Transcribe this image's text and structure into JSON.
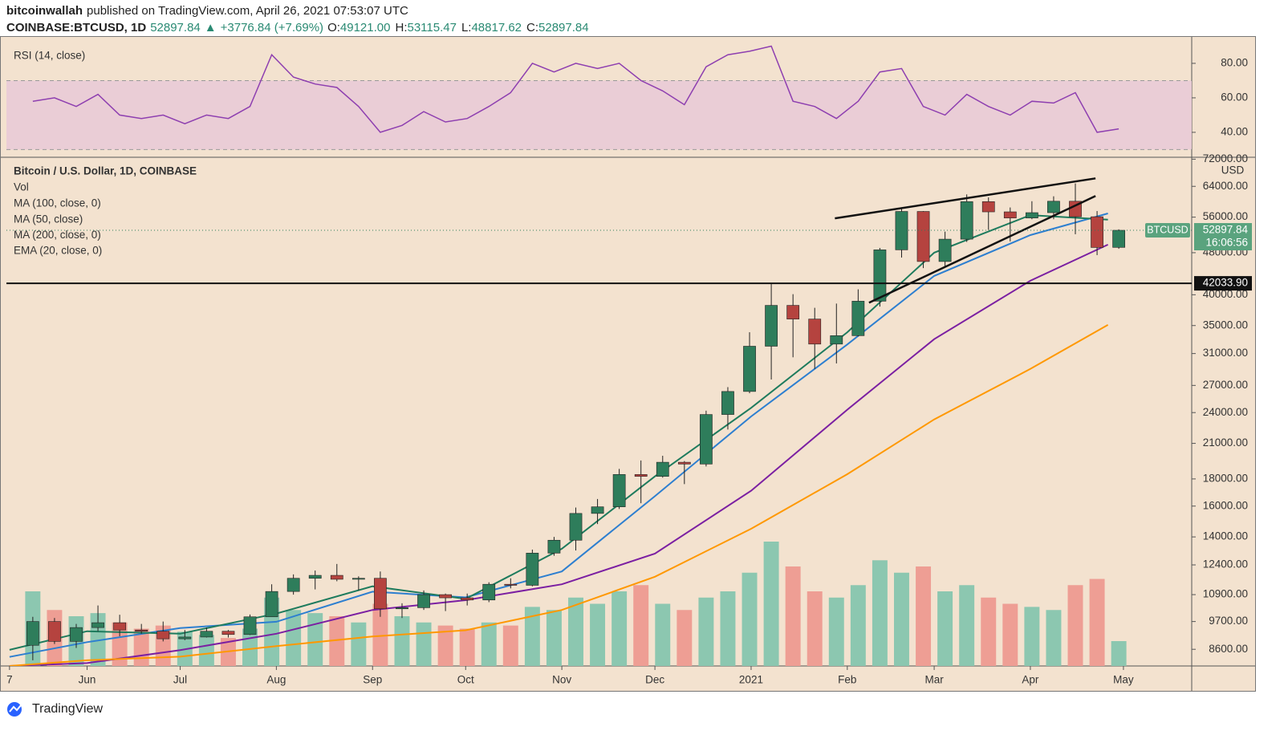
{
  "header": {
    "publisher": "bitcoinwallah",
    "published": "published on TradingView.com, April 26, 2021 07:53:07 UTC",
    "symbol": "COINBASE:BTCUSD, 1D",
    "price": "52897.84",
    "arrow": "▲",
    "change": "+3776.84 (+7.69%)",
    "ohlc": [
      {
        "label": "O:",
        "value": "49121.00"
      },
      {
        "label": "H:",
        "value": "53115.47"
      },
      {
        "label": "L:",
        "value": "48817.62"
      },
      {
        "label": "C:",
        "value": "52897.84"
      }
    ]
  },
  "chart_data": [
    {
      "type": "line",
      "title": "RSI (14, close)",
      "color": "#8e3fb0",
      "x": [
        "2020-05-11",
        "2020-05-18",
        "2020-05-25",
        "2020-06-01",
        "2020-06-08",
        "2020-06-15",
        "2020-06-22",
        "2020-06-29",
        "2020-07-06",
        "2020-07-13",
        "2020-07-20",
        "2020-07-27",
        "2020-08-03",
        "2020-08-10",
        "2020-08-17",
        "2020-08-24",
        "2020-08-31",
        "2020-09-07",
        "2020-09-14",
        "2020-09-21",
        "2020-09-28",
        "2020-10-05",
        "2020-10-12",
        "2020-10-19",
        "2020-10-26",
        "2020-11-02",
        "2020-11-09",
        "2020-11-16",
        "2020-11-23",
        "2020-11-30",
        "2020-12-07",
        "2020-12-14",
        "2020-12-21",
        "2020-12-28",
        "2021-01-04",
        "2021-01-11",
        "2021-01-18",
        "2021-01-25",
        "2021-02-01",
        "2021-02-08",
        "2021-02-15",
        "2021-02-22",
        "2021-03-01",
        "2021-03-08",
        "2021-03-15",
        "2021-03-22",
        "2021-03-29",
        "2021-04-05",
        "2021-04-12",
        "2021-04-19",
        "2021-04-26"
      ],
      "values": [
        58,
        60,
        55,
        62,
        50,
        48,
        50,
        45,
        50,
        48,
        55,
        85,
        72,
        68,
        66,
        55,
        40,
        44,
        52,
        46,
        48,
        55,
        63,
        80,
        75,
        80,
        77,
        80,
        70,
        64,
        56,
        78,
        85,
        87,
        90,
        58,
        55,
        48,
        58,
        75,
        77,
        55,
        50,
        62,
        55,
        50,
        58,
        57,
        63,
        40,
        42
      ],
      "xlim": [
        "2020-05-06",
        "2021-05-23"
      ],
      "ylim": [
        26,
        94.4
      ],
      "yticks": [
        {
          "value": 80,
          "label": "80.00"
        },
        {
          "value": 60,
          "label": "60.00"
        },
        {
          "value": 40,
          "label": "40.00"
        }
      ],
      "band": [
        30,
        70
      ],
      "band_color": "#e8c9d7"
    },
    {
      "type": "candlestick",
      "title": "Bitcoin / U.S. Dollar, 1D, COINBASE",
      "log_scale": true,
      "y_unit": "USD",
      "up_color": "#2e7d5b",
      "down_color": "#b5433f",
      "x": [
        "2020-05-11",
        "2020-05-18",
        "2020-05-25",
        "2020-06-01",
        "2020-06-08",
        "2020-06-15",
        "2020-06-22",
        "2020-06-29",
        "2020-07-06",
        "2020-07-13",
        "2020-07-20",
        "2020-07-27",
        "2020-08-03",
        "2020-08-10",
        "2020-08-17",
        "2020-08-24",
        "2020-08-31",
        "2020-09-07",
        "2020-09-14",
        "2020-09-21",
        "2020-09-28",
        "2020-10-05",
        "2020-10-12",
        "2020-10-19",
        "2020-10-26",
        "2020-11-02",
        "2020-11-09",
        "2020-11-16",
        "2020-11-23",
        "2020-11-30",
        "2020-12-07",
        "2020-12-14",
        "2020-12-21",
        "2020-12-28",
        "2021-01-04",
        "2021-01-11",
        "2021-01-18",
        "2021-01-25",
        "2021-02-01",
        "2021-02-08",
        "2021-02-15",
        "2021-02-22",
        "2021-03-01",
        "2021-03-08",
        "2021-03-15",
        "2021-03-22",
        "2021-03-29",
        "2021-04-05",
        "2021-04-12",
        "2021-04-19",
        "2021-04-26"
      ],
      "open": [
        8750,
        9700,
        8900,
        9450,
        9650,
        9350,
        9300,
        9000,
        9070,
        9300,
        9170,
        9900,
        11050,
        11700,
        11850,
        11650,
        11700,
        10250,
        10300,
        10900,
        10750,
        10650,
        11400,
        11350,
        13050,
        13800,
        15500,
        15950,
        18350,
        18200,
        19350,
        19200,
        23800,
        26300,
        32000,
        38200,
        36000,
        32300,
        33500,
        38900,
        48600,
        57400,
        46200,
        50900,
        59900,
        57300,
        55800,
        57100,
        60000,
        56100,
        49121
      ],
      "high": [
        9900,
        9850,
        9600,
        10400,
        9990,
        9600,
        9700,
        9350,
        9450,
        9350,
        10000,
        11400,
        11900,
        12100,
        12450,
        11800,
        12050,
        10500,
        11100,
        10950,
        10950,
        11500,
        11700,
        13250,
        14000,
        15900,
        16500,
        18800,
        19500,
        19900,
        19450,
        24200,
        26800,
        34000,
        41950,
        40100,
        37800,
        38500,
        40950,
        49000,
        58300,
        57500,
        52600,
        61800,
        61000,
        58400,
        60000,
        61300,
        64800,
        57500,
        53115.47
      ],
      "low": [
        8200,
        8800,
        8650,
        9300,
        9100,
        9200,
        8900,
        8950,
        9050,
        9050,
        9150,
        9900,
        10900,
        11150,
        11550,
        11100,
        9900,
        9850,
        10200,
        10150,
        10400,
        10550,
        11200,
        11300,
        12900,
        13200,
        14800,
        15800,
        16200,
        18100,
        17600,
        19000,
        22300,
        26100,
        27700,
        30500,
        29000,
        29700,
        33400,
        38000,
        47000,
        44900,
        45000,
        50300,
        53000,
        50400,
        55500,
        55500,
        52000,
        47500,
        48817.62
      ],
      "close": [
        9700,
        8900,
        9450,
        9650,
        9350,
        9300,
        9000,
        9070,
        9300,
        9170,
        9900,
        11050,
        11700,
        11850,
        11650,
        11700,
        10250,
        10300,
        10900,
        10750,
        10650,
        11400,
        11350,
        13050,
        13800,
        15500,
        15950,
        18350,
        18200,
        19350,
        19200,
        23800,
        26300,
        32000,
        38200,
        36000,
        32300,
        33500,
        38900,
        48600,
        57400,
        46200,
        50900,
        59900,
        57300,
        55800,
        57100,
        60000,
        56100,
        49100,
        52897.84
      ],
      "volume": {
        "name": "Vol",
        "up_color": "#8cc7b0",
        "down_color": "#ee9e94",
        "values": [
          120,
          90,
          80,
          85,
          70,
          60,
          65,
          55,
          50,
          45,
          60,
          110,
          90,
          85,
          80,
          70,
          100,
          80,
          70,
          65,
          60,
          70,
          65,
          95,
          90,
          110,
          100,
          120,
          130,
          100,
          90,
          110,
          120,
          150,
          200,
          160,
          120,
          110,
          130,
          170,
          150,
          160,
          120,
          130,
          110,
          100,
          95,
          90,
          130,
          140,
          40
        ]
      },
      "series": [
        {
          "name": "MA (100, close, 0)",
          "color": "#7b1fa2",
          "x": [
            "2020-05-07",
            "2020-06-01",
            "2020-07-01",
            "2020-08-01",
            "2020-09-01",
            "2020-10-01",
            "2020-11-01",
            "2020-12-01",
            "2021-01-01",
            "2021-02-01",
            "2021-03-01",
            "2021-04-01",
            "2021-04-26"
          ],
          "values": [
            8000,
            8100,
            8570,
            9200,
            10200,
            10640,
            11400,
            13020,
            17100,
            24300,
            33000,
            42500,
            49700
          ]
        },
        {
          "name": "MA (50, close)",
          "color": "#2d7fd0",
          "x": [
            "2020-05-07",
            "2020-06-01",
            "2020-07-01",
            "2020-08-01",
            "2020-09-01",
            "2020-10-01",
            "2020-11-01",
            "2020-12-01",
            "2021-01-01",
            "2021-02-01",
            "2021-03-01",
            "2021-04-01",
            "2021-04-26"
          ],
          "values": [
            8320,
            8870,
            9430,
            9690,
            11040,
            10770,
            12050,
            16700,
            23600,
            32250,
            43400,
            51800,
            56900
          ]
        },
        {
          "name": "MA (200, close, 0)",
          "color": "#ff9800",
          "x": [
            "2020-05-07",
            "2020-06-01",
            "2020-07-01",
            "2020-08-01",
            "2020-09-01",
            "2020-10-01",
            "2020-11-01",
            "2020-12-01",
            "2021-01-01",
            "2021-02-01",
            "2021-03-01",
            "2021-04-01",
            "2021-04-26"
          ],
          "values": [
            8000,
            8200,
            8330,
            8720,
            9090,
            9340,
            10200,
            11780,
            14500,
            18370,
            23300,
            29000,
            35100
          ]
        },
        {
          "name": "EMA (20, close, 0)",
          "color": "#1e7b5d",
          "x": [
            "2020-05-07",
            "2020-06-01",
            "2020-07-01",
            "2020-08-01",
            "2020-09-01",
            "2020-10-01",
            "2020-11-01",
            "2020-12-01",
            "2021-01-01",
            "2021-02-01",
            "2021-03-01",
            "2021-04-01",
            "2021-04-26"
          ],
          "values": [
            8580,
            9300,
            9200,
            10040,
            11300,
            10700,
            13300,
            18200,
            24500,
            34000,
            48000,
            56500,
            55400
          ]
        }
      ],
      "trendlines": [
        {
          "x": [
            "2021-01-28",
            "2021-04-22"
          ],
          "values": [
            55700,
            66250
          ]
        },
        {
          "x": [
            "2021-02-08",
            "2021-04-22"
          ],
          "values": [
            38640,
            61370
          ]
        }
      ],
      "levels": [
        {
          "value": 42033.9,
          "label": "42033.90"
        }
      ],
      "last_price": {
        "symbol": "BTCUSD",
        "value": 52897.84,
        "label": "52897.84",
        "countdown": "16:06:56"
      },
      "xlim": [
        "2020-05-06",
        "2021-05-23"
      ],
      "ylim": [
        8000,
        72600
      ],
      "yticks": [
        {
          "value": 72000,
          "label": "72000.00"
        },
        {
          "value": 64000,
          "label": "64000.00"
        },
        {
          "value": 56000,
          "label": "56000.00"
        },
        {
          "value": 48000,
          "label": "48000.00"
        },
        {
          "value": 40000,
          "label": "40000.00"
        },
        {
          "value": 35000,
          "label": "35000.00"
        },
        {
          "value": 31000,
          "label": "31000.00"
        },
        {
          "value": 27000,
          "label": "27000.00"
        },
        {
          "value": 24000,
          "label": "24000.00"
        },
        {
          "value": 21000,
          "label": "21000.00"
        },
        {
          "value": 18000,
          "label": "18000.00"
        },
        {
          "value": 16000,
          "label": "16000.00"
        },
        {
          "value": 14000,
          "label": "14000.00"
        },
        {
          "value": 12400,
          "label": "12400.00"
        },
        {
          "value": 10900,
          "label": "10900.00"
        },
        {
          "value": 9700,
          "label": "9700.00"
        },
        {
          "value": 8600,
          "label": "8600.00"
        }
      ],
      "xticks": [
        {
          "value": "2020-05-07",
          "label": "7"
        },
        {
          "value": "2020-06-01",
          "label": "Jun"
        },
        {
          "value": "2020-07-01",
          "label": "Jul"
        },
        {
          "value": "2020-08-01",
          "label": "Aug"
        },
        {
          "value": "2020-09-01",
          "label": "Sep"
        },
        {
          "value": "2020-10-01",
          "label": "Oct"
        },
        {
          "value": "2020-11-01",
          "label": "Nov"
        },
        {
          "value": "2020-12-01",
          "label": "Dec"
        },
        {
          "value": "2021-01-01",
          "label": "2021"
        },
        {
          "value": "2021-02-01",
          "label": "Feb"
        },
        {
          "value": "2021-03-01",
          "label": "Mar"
        },
        {
          "value": "2021-04-01",
          "label": "Apr"
        },
        {
          "value": "2021-05-01",
          "label": "May"
        }
      ]
    }
  ],
  "footer": {
    "brand": "TradingView"
  }
}
